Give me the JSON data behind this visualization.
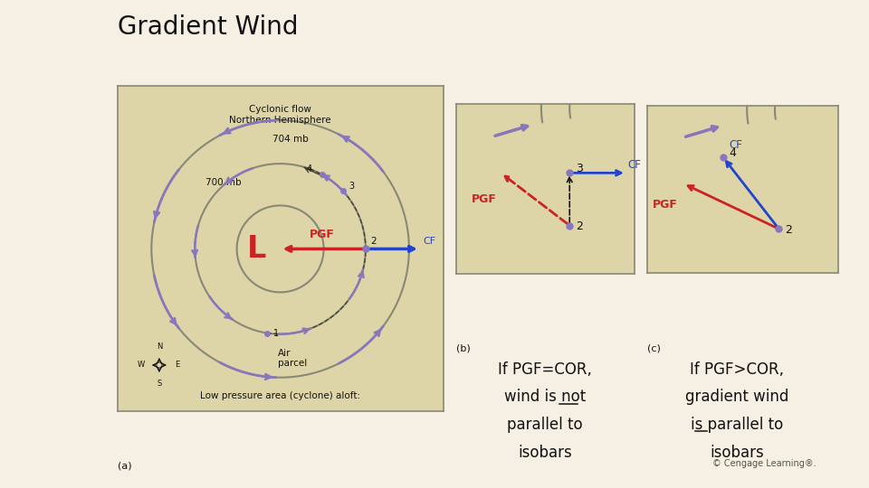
{
  "title": "Gradient Wind",
  "title_fontsize": 20,
  "bg_color": "#f5f0e3",
  "panel_bg": "#ddd5a8",
  "text_color": "#111111",
  "red": "#cc2222",
  "blue": "#2244cc",
  "purple": "#8877bb",
  "gray_line": "#888877",
  "label_a": "(a)",
  "label_b": "(b)",
  "label_c": "(c)",
  "label_704": "704 mb",
  "label_700": "700 mb",
  "label_cyclonic": "Cyclonic flow\nNorthern Hemisphere",
  "label_low": "Low pressure area (cyclone) aloft:",
  "label_air": "Air\nparcel",
  "label_L": "L",
  "label_PGF": "PGF",
  "label_CF": "CF",
  "text_b_line1": "If PGF=COR,",
  "text_b_line2": "wind is not",
  "text_b_line3": "parallel to",
  "text_b_line4": "isobars",
  "text_c_line1": "If PGF>COR,",
  "text_c_line2": "gradient wind",
  "text_c_line3": "is parallel to",
  "text_c_line4": "isobars",
  "copyright": "© Cengage Learning®."
}
